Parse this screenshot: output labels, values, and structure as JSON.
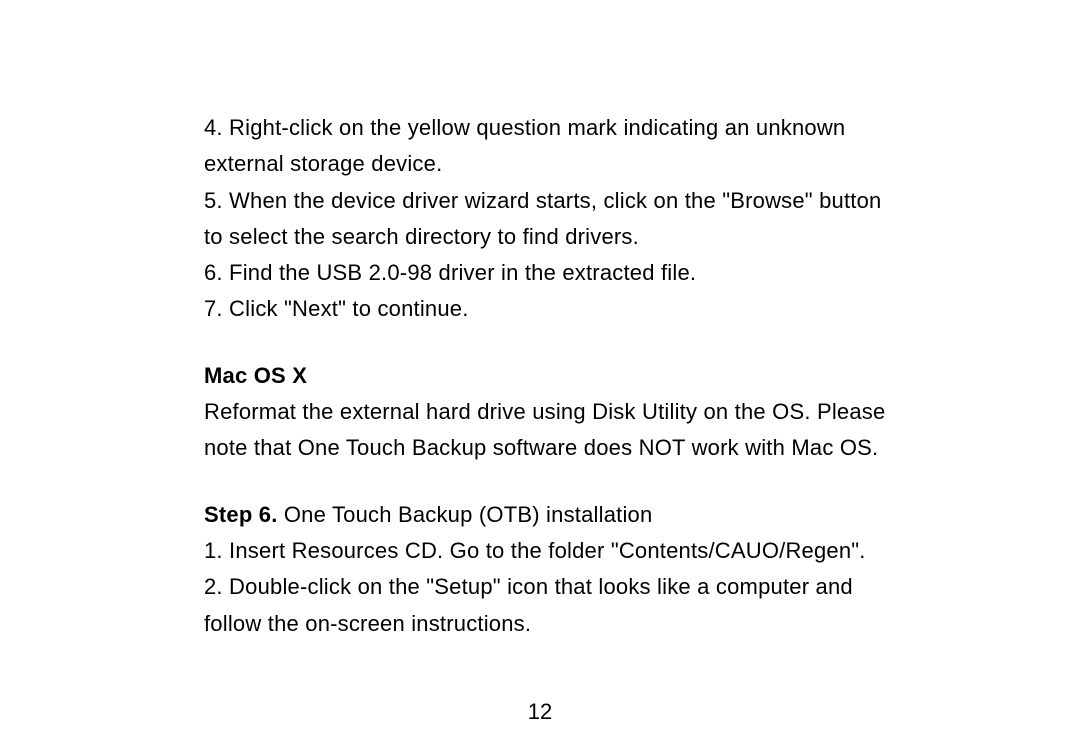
{
  "list1": {
    "line1": "4. Right-click on the yellow question mark indicating an unknown",
    "line2": "external storage device.",
    "line3": "5. When the device driver wizard starts, click on the \"Browse\" button",
    "line4": "to select the search directory to find drivers.",
    "line5": "6. Find the USB 2.0-98 driver in the extracted file.",
    "line6": "7. Click \"Next\" to continue."
  },
  "macos": {
    "heading": "Mac OS X",
    "line1": "Reformat the external hard drive using Disk Utility on the OS. Please",
    "line2": "note that One Touch Backup software does NOT work with Mac OS."
  },
  "step6": {
    "label": "Step 6. ",
    "title": "One Touch Backup (OTB) installation",
    "line1": "1. Insert Resources CD. Go to the folder \"Contents/CAUO/Regen\".",
    "line2": "2. Double-click on the \"Setup\" icon that looks like a computer and",
    "line3": "follow the on-screen instructions."
  },
  "pageNumber": "12"
}
